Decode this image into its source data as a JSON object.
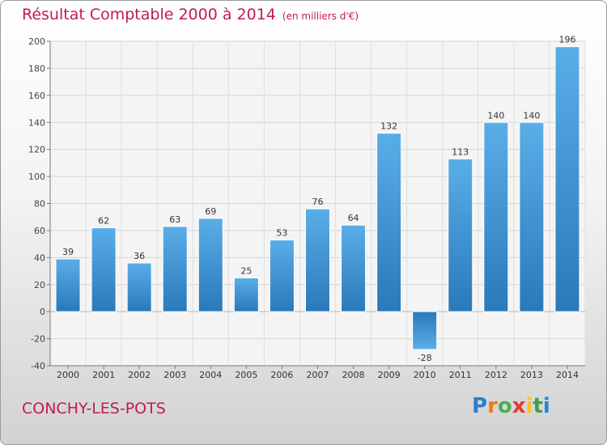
{
  "chart_data": {
    "type": "bar",
    "title": "Résultat Comptable 2000 à 2014",
    "subtitle": "(en milliers d'€)",
    "categories": [
      "2000",
      "2001",
      "2002",
      "2003",
      "2004",
      "2005",
      "2006",
      "2007",
      "2008",
      "2009",
      "2010",
      "2011",
      "2012",
      "2013",
      "2014"
    ],
    "values": [
      39,
      62,
      36,
      63,
      69,
      25,
      53,
      76,
      64,
      132,
      -28,
      113,
      140,
      140,
      196
    ],
    "ylim": [
      -40,
      200
    ],
    "yticks": [
      -40,
      -20,
      0,
      20,
      40,
      60,
      80,
      100,
      120,
      140,
      160,
      180,
      200
    ],
    "grid": true,
    "bar_color": "#3b8fd4"
  },
  "footer": {
    "commune": "CONCHY-LES-POTS",
    "logo_letters": [
      "P",
      "r",
      "o",
      "x",
      "i",
      "t",
      "i"
    ],
    "logo_colors": [
      "#2a7fc7",
      "#f07a1a",
      "#4caf50",
      "#e53935",
      "#fbc02d",
      "#43a047",
      "#1e88e5"
    ]
  }
}
